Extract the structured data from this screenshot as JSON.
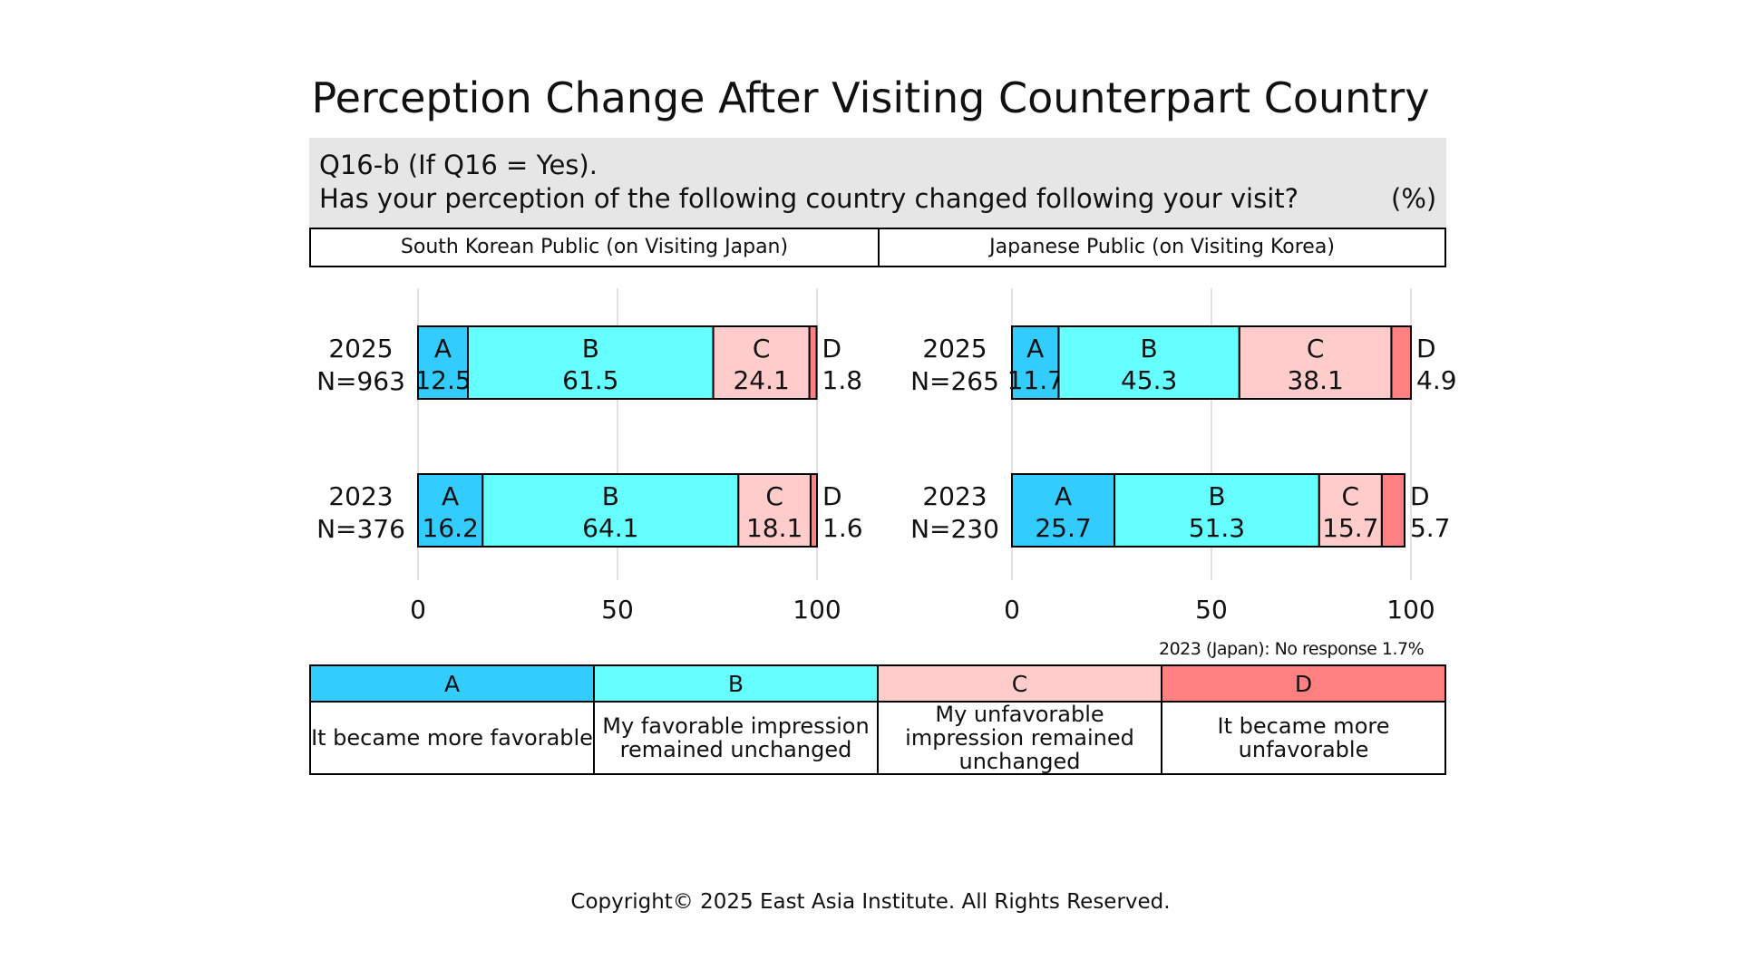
{
  "title": "Perception Change After Visiting Counterpart Country",
  "question": {
    "line1": "Q16-b (If Q16 = Yes).",
    "line2": "Has your perception of the following country changed following your visit?",
    "unit": "(%)"
  },
  "colors": {
    "A": "#33ccff",
    "B": "#66ffff",
    "C": "#ffcccc",
    "D": "#ff8080"
  },
  "chart_data": [
    {
      "type": "bar",
      "orientation": "horizontal",
      "stacked": true,
      "title": "South Korean Public (on Visiting Japan)",
      "categories": [
        {
          "year": "2025",
          "n": "N=963"
        },
        {
          "year": "2023",
          "n": "N=376"
        }
      ],
      "series": [
        {
          "name": "A",
          "values": [
            12.5,
            16.2
          ]
        },
        {
          "name": "B",
          "values": [
            61.5,
            64.1
          ]
        },
        {
          "name": "C",
          "values": [
            24.1,
            18.1
          ]
        },
        {
          "name": "D",
          "values": [
            1.8,
            1.6
          ]
        }
      ],
      "xlim": [
        0,
        100
      ],
      "xticks": [
        0,
        50,
        100
      ],
      "grid": true
    },
    {
      "type": "bar",
      "orientation": "horizontal",
      "stacked": true,
      "title": "Japanese Public (on Visiting Korea)",
      "categories": [
        {
          "year": "2025",
          "n": "N=265"
        },
        {
          "year": "2023",
          "n": "N=230"
        }
      ],
      "series": [
        {
          "name": "A",
          "values": [
            11.7,
            25.7
          ]
        },
        {
          "name": "B",
          "values": [
            45.3,
            51.3
          ]
        },
        {
          "name": "C",
          "values": [
            38.1,
            15.7
          ]
        },
        {
          "name": "D",
          "values": [
            4.9,
            5.7
          ]
        }
      ],
      "xlim": [
        0,
        100
      ],
      "xticks": [
        0,
        50,
        100
      ],
      "grid": true
    }
  ],
  "footnote": "2023 (Japan): No response 1.7%",
  "legend": [
    {
      "key": "A",
      "description": "It became more favorable"
    },
    {
      "key": "B",
      "description": "My favorable impression remained unchanged"
    },
    {
      "key": "C",
      "description": "My unfavorable impression remained unchanged"
    },
    {
      "key": "D",
      "description": "It became more unfavorable"
    }
  ],
  "copyright": "Copyright© 2025 East Asia Institute. All Rights Reserved."
}
